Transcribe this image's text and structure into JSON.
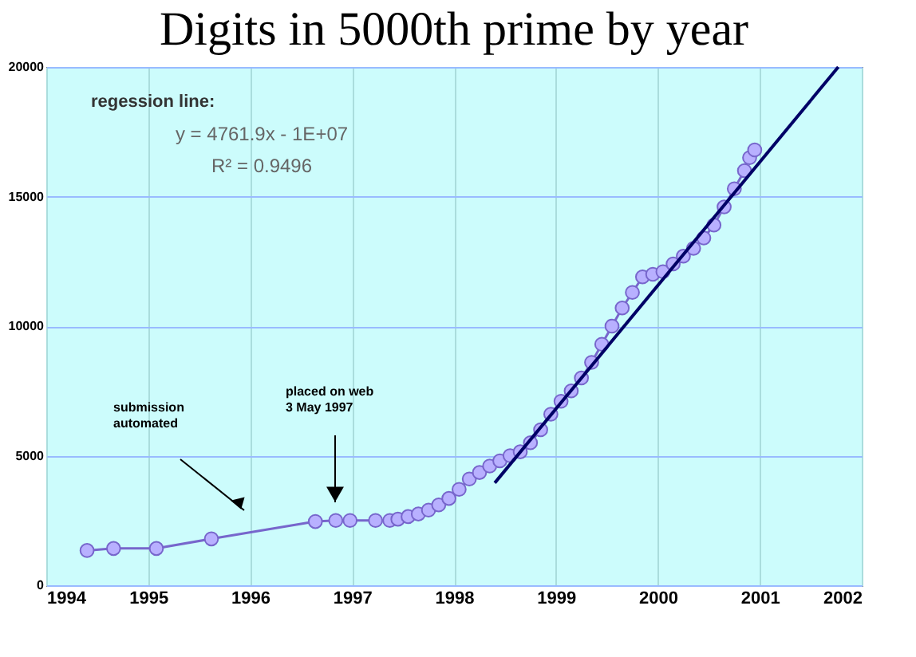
{
  "chart_data": {
    "type": "line",
    "title": "Digits in 5000th prime by year",
    "xlim": [
      1994,
      2002
    ],
    "xticks": [
      1994,
      1995,
      1996,
      1997,
      1998,
      1999,
      2000,
      2001,
      2002
    ],
    "ylim": [
      0,
      20000
    ],
    "yticks": [
      0,
      5000,
      10000,
      15000,
      20000
    ],
    "grid": true,
    "series": [
      {
        "marker": "circle",
        "color": "#7766cc",
        "x": [
          1994.4,
          1994.66,
          1995.08,
          1995.62,
          1996.64,
          1996.84,
          1996.98,
          1997.23,
          1997.37,
          1997.45,
          1997.55,
          1997.65,
          1997.75,
          1997.85,
          1997.95,
          1998.05,
          1998.15,
          1998.25,
          1998.35,
          1998.45,
          1998.55,
          1998.65,
          1998.75,
          1998.85,
          1998.95,
          1999.05,
          1999.15,
          1999.25,
          1999.35,
          1999.45,
          1999.55,
          1999.65,
          1999.75,
          1999.85,
          1999.95,
          2000.05,
          2000.15,
          2000.25,
          2000.35,
          2000.45,
          2000.55,
          2000.65,
          2000.75,
          2000.85,
          2000.9,
          2000.95
        ],
        "values": [
          1340,
          1420,
          1420,
          1790,
          2460,
          2500,
          2500,
          2500,
          2500,
          2550,
          2650,
          2750,
          2900,
          3100,
          3350,
          3700,
          4100,
          4350,
          4600,
          4800,
          5000,
          5150,
          5500,
          6000,
          6600,
          7100,
          7500,
          8000,
          8600,
          9300,
          10000,
          10700,
          11300,
          11900,
          12000,
          12100,
          12400,
          12700,
          13000,
          13400,
          13900,
          14600,
          15300,
          16000,
          16500,
          16800
        ]
      },
      {
        "type": "line",
        "marker": "none",
        "color": "#000066",
        "x": [
          1998.4,
          2001.77
        ],
        "values": [
          3950,
          20000
        ]
      }
    ],
    "annotations": [
      "regession line:",
      "y = 4761.9x - 1E+07",
      "R² = 0.9496",
      "submission\nautomated",
      "placed on web\n3 May 1997"
    ]
  }
}
